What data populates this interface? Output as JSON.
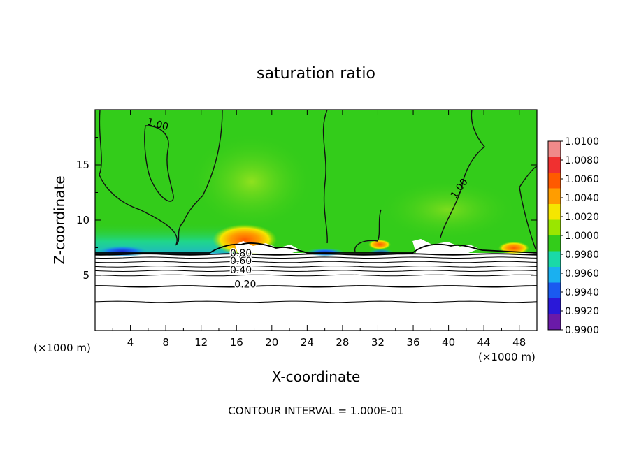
{
  "chart_data": {
    "type": "heatmap",
    "title": "saturation ratio",
    "xlabel": "X-coordinate",
    "ylabel": "Z-coordinate",
    "x_unit_left": "(×1000 m)",
    "x_unit_right": "(×1000 m)",
    "footer": "CONTOUR INTERVAL = 1.000E-01",
    "xlim": [
      0,
      50
    ],
    "ylim": [
      0,
      20
    ],
    "xticks": [
      "4",
      "8",
      "12",
      "16",
      "20",
      "24",
      "28",
      "32",
      "36",
      "40",
      "44",
      "48"
    ],
    "yticks": [
      "5",
      "10",
      "15"
    ],
    "colorbar": {
      "ticks": [
        "1.0100",
        "1.0080",
        "1.0060",
        "1.0040",
        "1.0020",
        "1.0000",
        "0.9980",
        "0.9960",
        "0.9940",
        "0.9920",
        "0.9900"
      ],
      "colors": [
        "#f08a8a",
        "#f03030",
        "#ff5a00",
        "#ff9d00",
        "#f5e600",
        "#9ae600",
        "#33cc1a",
        "#1ad9a8",
        "#1ab0f0",
        "#1a5af0",
        "#2a18d8",
        "#6a1aa8"
      ]
    },
    "background_color": "#33cc1a",
    "contour_labels": [
      {
        "text": "1.00",
        "x": 7.0,
        "z": 18.4
      },
      {
        "text": "1.00",
        "x": 41.5,
        "z": 12.7
      },
      {
        "text": "0.80",
        "x": 16.5,
        "z": 6.7
      },
      {
        "text": "0.60",
        "x": 16.5,
        "z": 6.0
      },
      {
        "text": "0.40",
        "x": 16.5,
        "z": 5.2
      },
      {
        "text": "0.20",
        "x": 17.0,
        "z": 3.9
      }
    ],
    "contour_levels_below": [
      {
        "z": 6.9,
        "bold": true
      },
      {
        "z": 6.6,
        "bold": false
      },
      {
        "z": 6.2,
        "bold": false
      },
      {
        "z": 5.8,
        "bold": false
      },
      {
        "z": 5.4,
        "bold": false
      },
      {
        "z": 5.0,
        "bold": false
      },
      {
        "z": 4.0,
        "bold": true
      },
      {
        "z": 2.6,
        "bold": false
      }
    ]
  }
}
